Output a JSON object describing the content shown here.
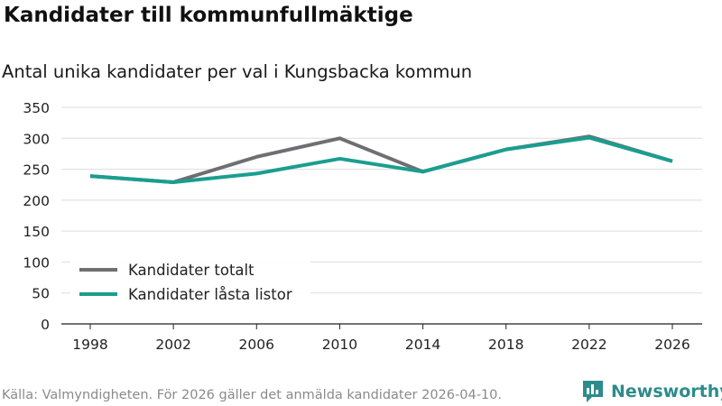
{
  "header": {
    "title": "Kandidater till kommunfullmäktige",
    "subtitle": "Antal unika kandidater per val i Kungsbacka kommun"
  },
  "footer": {
    "source": "Källa: Valmyndigheten. För 2026 gäller det anmälda kandidater 2026-04-10.",
    "brand": "Newsworthy"
  },
  "colors": {
    "totalt": "#6e6e73",
    "lasta": "#1a9e8f",
    "grid": "#dddddd",
    "brand": "#2e8b8b"
  },
  "chart_data": {
    "type": "line",
    "title": "Kandidater till kommunfullmäktige",
    "subtitle": "Antal unika kandidater per val i Kungsbacka kommun",
    "xlabel": "",
    "ylabel": "",
    "x": [
      "1998",
      "2002",
      "2006",
      "2010",
      "2014",
      "2018",
      "2022",
      "2026"
    ],
    "ylim": [
      0,
      350
    ],
    "yticks": [
      0,
      50,
      100,
      150,
      200,
      250,
      300,
      350
    ],
    "grid": true,
    "legend_position": "bottom-left",
    "series": [
      {
        "name": "Kandidater totalt",
        "color": "#6e6e73",
        "values": [
          239,
          229,
          270,
          300,
          246,
          282,
          303,
          263
        ]
      },
      {
        "name": "Kandidater låsta listor",
        "color": "#1a9e8f",
        "values": [
          239,
          229,
          243,
          267,
          246,
          282,
          301,
          263
        ]
      }
    ]
  }
}
